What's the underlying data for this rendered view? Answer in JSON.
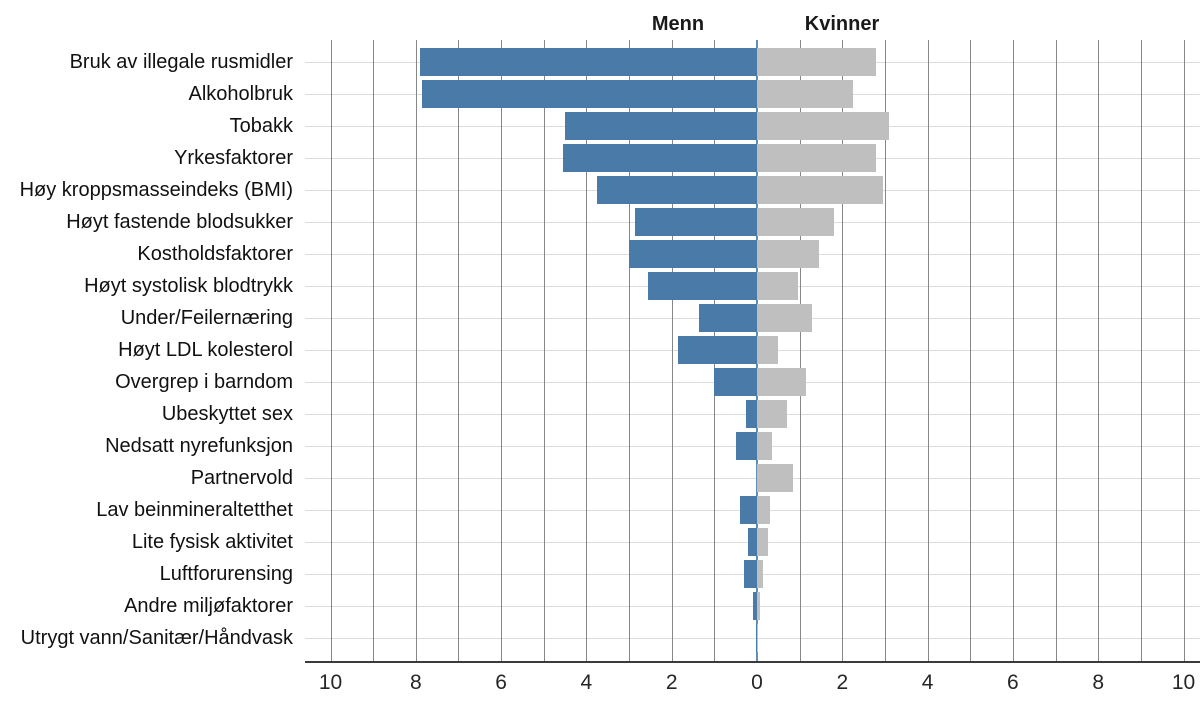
{
  "header": {
    "left_series_label": "Menn",
    "right_series_label": "Kvinner"
  },
  "chart_data": {
    "type": "bar",
    "variant": "diverging-horizontal",
    "title": "",
    "xlabel": "",
    "ylabel": "",
    "categories": [
      "Bruk av illegale rusmidler",
      "Alkoholbruk",
      "Tobakk",
      "Yrkesfaktorer",
      "Høy kroppsmasseindeks (BMI)",
      "Høyt fastende blodsukker",
      "Kostholdsfaktorer",
      "Høyt systolisk blodtrykk",
      "Under/Feilernæring",
      "Høyt LDL kolesterol",
      "Overgrep i barndom",
      "Ubeskyttet sex",
      "Nedsatt nyrefunksjon",
      "Partnervold",
      "Lav beinmineraltetthet",
      "Lite fysisk aktivitet",
      "Luftforurensing",
      "Andre miljøfaktorer",
      "Utrygt vann/Sanitær/Håndvask"
    ],
    "series": [
      {
        "name": "Menn",
        "side": "left",
        "color": "#4A7AA8",
        "values": [
          7.9,
          7.85,
          4.5,
          4.55,
          3.75,
          2.85,
          3.0,
          2.55,
          1.35,
          1.85,
          1.0,
          0.25,
          0.5,
          0.0,
          0.4,
          0.2,
          0.3,
          0.1,
          0.02
        ]
      },
      {
        "name": "Kvinner",
        "side": "right",
        "color": "#BFBFBF",
        "values": [
          2.8,
          2.25,
          3.1,
          2.8,
          2.95,
          1.8,
          1.45,
          0.95,
          1.3,
          0.5,
          1.15,
          0.7,
          0.35,
          0.85,
          0.3,
          0.25,
          0.15,
          0.08,
          0.02
        ]
      }
    ],
    "xlim": [
      -10,
      10
    ],
    "x_tick_values": [
      -10,
      -8,
      -6,
      -4,
      -2,
      0,
      2,
      4,
      6,
      8,
      10
    ],
    "x_tick_labels": [
      "10",
      "8",
      "6",
      "4",
      "2",
      "0",
      "2",
      "4",
      "6",
      "8",
      "10"
    ],
    "grid": true,
    "legend_position": "top-inside-as-headers"
  },
  "colors": {
    "menn_bar": "#4A7AA8",
    "kvinner_bar": "#BFBFBF",
    "vertical_grid": "#878787",
    "horizontal_grid": "#dcdcdc",
    "axis_line": "#3a3a3a",
    "zero_line": "#4A7AA8",
    "background": "#ffffff",
    "text": "#1a1a1a"
  }
}
